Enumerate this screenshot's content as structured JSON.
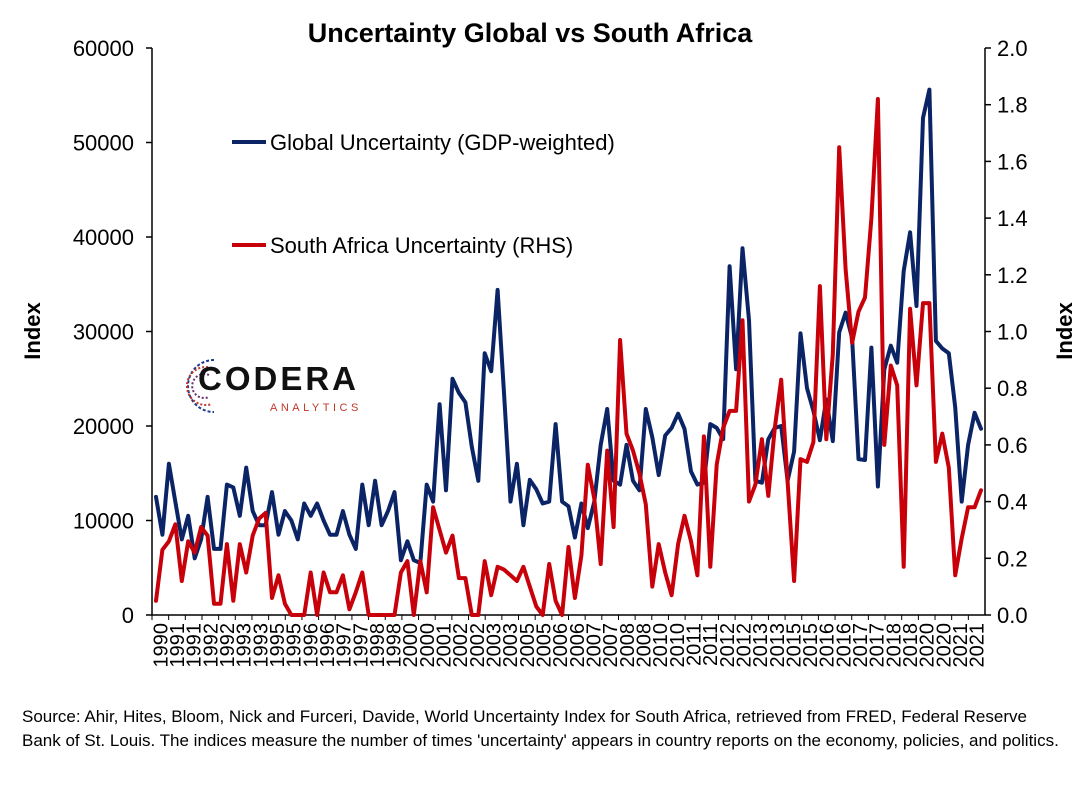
{
  "colors": {
    "global": "#0b2466",
    "south_africa": "#c8000a"
  },
  "logo": {
    "word": "CODERA",
    "sub": "ANALYTICS"
  },
  "source_note": "Source: Ahir, Hites, Bloom, Nick and Furceri, Davide, World Uncertainty Index for South Africa, retrieved from FRED, Federal Reserve Bank of St. Louis. The indices measure the number of times 'uncertainty' appears in country reports on the economy, policies, and politics.",
  "chart_data": {
    "type": "line",
    "title": "Uncertainty Global vs South Africa",
    "ylabel": "Index",
    "y2label": "Index",
    "ylim": [
      0,
      60000
    ],
    "y2lim": [
      0,
      2.0
    ],
    "yticks": [
      "0",
      "10000",
      "20000",
      "30000",
      "40000",
      "50000",
      "60000"
    ],
    "y2ticks": [
      "0.0",
      "0.2",
      "0.4",
      "0.6",
      "0.8",
      "1.0",
      "1.2",
      "1.4",
      "1.6",
      "1.8",
      "2.0"
    ],
    "x_labels": [
      "1990",
      "1991",
      "1991",
      "1992",
      "1992",
      "1993",
      "1993",
      "1995",
      "1995",
      "1996",
      "1996",
      "1997",
      "1997",
      "1998",
      "1998",
      "2000",
      "2000",
      "2001",
      "2002",
      "2002",
      "2003",
      "2003",
      "2005",
      "2005",
      "2006",
      "2006",
      "2007",
      "2007",
      "2008",
      "2008",
      "2010",
      "2010",
      "2011",
      "2011",
      "2012",
      "2012",
      "2013",
      "2013",
      "2015",
      "2015",
      "2016",
      "2016",
      "2017",
      "2017",
      "2018",
      "2018",
      "2020",
      "2020",
      "2021",
      "2021"
    ],
    "series": [
      {
        "name": "Global Uncertainty (GDP-weighted)",
        "axis": "left",
        "values": [
          12500,
          8500,
          16000,
          12000,
          8000,
          10500,
          6000,
          8000,
          12500,
          7000,
          7000,
          13800,
          13500,
          10500,
          15600,
          11000,
          9500,
          9500,
          13000,
          8500,
          11000,
          10000,
          8000,
          11800,
          10500,
          11800,
          10000,
          8500,
          8500,
          11000,
          8500,
          7000,
          13800,
          9500,
          14200,
          9500,
          11000,
          13000,
          5800,
          7800,
          5800,
          5500,
          13800,
          12000,
          22300,
          13200,
          25000,
          23500,
          22500,
          17800,
          14200,
          27700,
          25800,
          34400,
          23500,
          12000,
          16000,
          9500,
          14300,
          13300,
          11800,
          12000,
          20200,
          12000,
          11500,
          8200,
          11800,
          9200,
          12000,
          18000,
          21800,
          14200,
          13800,
          18000,
          14200,
          13200,
          21800,
          18800,
          14800,
          19000,
          19800,
          21300,
          19700,
          15200,
          13800,
          14000,
          20200,
          19800,
          18600,
          36900,
          26000,
          38800,
          31200,
          14200,
          14000,
          18600,
          19800,
          20000,
          14200,
          17300,
          29800,
          24000,
          21600,
          18500,
          22800,
          18400,
          29900,
          32000,
          29300,
          16500,
          16400,
          28300,
          13600,
          26000,
          28500,
          26700,
          36400,
          40500,
          32700,
          52600,
          55600,
          29000,
          28200,
          27700,
          22000,
          12000,
          18000,
          21400,
          19700
        ],
        "x_start": 1990.0,
        "x_step": 0.25
      },
      {
        "name": "South Africa Uncertainty (RHS)",
        "axis": "right",
        "values": [
          0.05,
          0.23,
          0.26,
          0.32,
          0.12,
          0.26,
          0.22,
          0.31,
          0.28,
          0.04,
          0.04,
          0.25,
          0.05,
          0.25,
          0.15,
          0.28,
          0.34,
          0.36,
          0.06,
          0.14,
          0.04,
          0.0,
          0.0,
          0.0,
          0.15,
          0.0,
          0.15,
          0.08,
          0.08,
          0.14,
          0.02,
          0.08,
          0.15,
          0.0,
          0.0,
          0.0,
          0.0,
          0.0,
          0.15,
          0.19,
          0.0,
          0.19,
          0.08,
          0.38,
          0.3,
          0.22,
          0.28,
          0.13,
          0.13,
          0.0,
          0.0,
          0.19,
          0.07,
          0.17,
          0.16,
          0.14,
          0.12,
          0.17,
          0.1,
          0.03,
          0.0,
          0.18,
          0.05,
          0.0,
          0.24,
          0.06,
          0.21,
          0.53,
          0.41,
          0.18,
          0.58,
          0.31,
          0.97,
          0.64,
          0.58,
          0.5,
          0.39,
          0.1,
          0.25,
          0.15,
          0.07,
          0.25,
          0.35,
          0.26,
          0.14,
          0.63,
          0.17,
          0.53,
          0.66,
          0.72,
          0.72,
          1.04,
          0.4,
          0.46,
          0.62,
          0.42,
          0.66,
          0.83,
          0.47,
          0.12,
          0.55,
          0.54,
          0.61,
          1.16,
          0.62,
          0.92,
          1.65,
          1.22,
          0.96,
          1.07,
          1.12,
          1.4,
          1.82,
          0.6,
          0.88,
          0.81,
          0.17,
          1.08,
          0.81,
          1.1,
          1.1,
          0.54,
          0.64,
          0.52,
          0.14,
          0.27,
          0.38,
          0.38,
          0.44
        ],
        "x_start": 1990.0,
        "x_step": 0.25
      }
    ],
    "legend": "top-left (inside plot)"
  }
}
